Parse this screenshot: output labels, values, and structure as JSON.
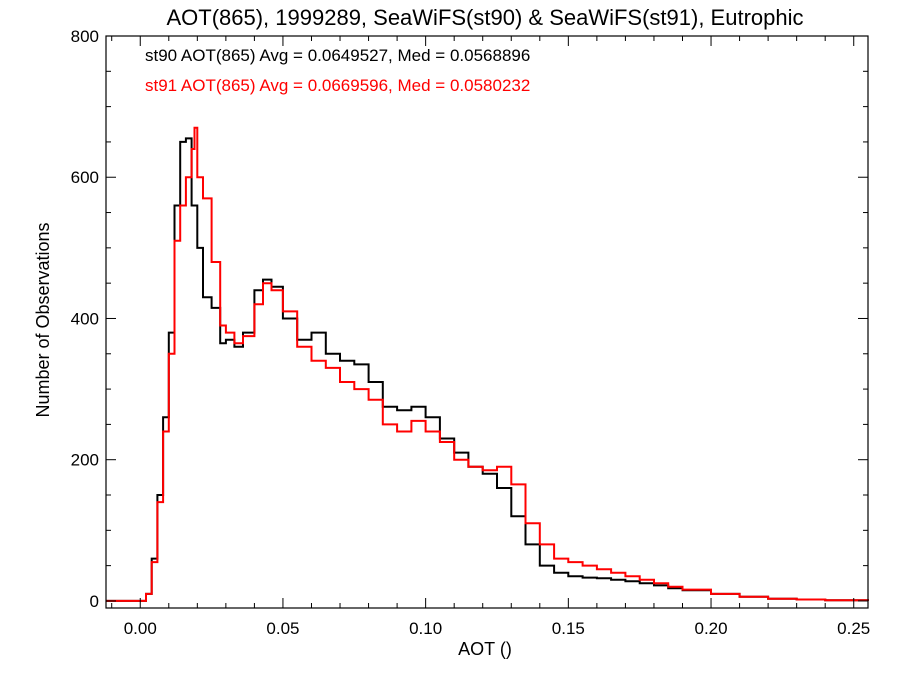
{
  "chart_data": {
    "type": "line",
    "title": "AOT(865), 1999289, SeaWiFS(st90) & SeaWiFS(st91), Eutrophic",
    "xlabel": "AOT ()",
    "ylabel": "Number of Observations",
    "xlim": [
      -0.012,
      0.255
    ],
    "ylim": [
      -10,
      800
    ],
    "xticks": [
      0.0,
      0.05,
      0.1,
      0.15,
      0.2,
      0.25
    ],
    "xtick_labels": [
      "0.00",
      "0.05",
      "0.10",
      "0.15",
      "0.20",
      "0.25"
    ],
    "yticks": [
      0,
      200,
      400,
      600,
      800
    ],
    "ytick_labels": [
      "0",
      "200",
      "400",
      "600",
      "800"
    ],
    "grid": false,
    "legend": "top-left",
    "series": [
      {
        "name": "st90",
        "label": "st90 AOT(865) Avg = 0.0649527, Med = 0.0568896",
        "color": "#000000",
        "x": [
          -0.012,
          0.0,
          0.002,
          0.004,
          0.006,
          0.008,
          0.01,
          0.012,
          0.014,
          0.016,
          0.018,
          0.02,
          0.022,
          0.025,
          0.028,
          0.03,
          0.033,
          0.036,
          0.04,
          0.043,
          0.046,
          0.05,
          0.055,
          0.06,
          0.065,
          0.07,
          0.075,
          0.08,
          0.085,
          0.09,
          0.095,
          0.1,
          0.105,
          0.11,
          0.115,
          0.12,
          0.125,
          0.13,
          0.135,
          0.14,
          0.145,
          0.15,
          0.155,
          0.16,
          0.165,
          0.17,
          0.175,
          0.18,
          0.185,
          0.19,
          0.2,
          0.21,
          0.22,
          0.23,
          0.24,
          0.255
        ],
        "y": [
          0,
          0,
          10,
          60,
          150,
          260,
          380,
          560,
          650,
          655,
          560,
          500,
          430,
          415,
          365,
          370,
          360,
          380,
          440,
          455,
          445,
          400,
          370,
          380,
          350,
          340,
          335,
          310,
          275,
          270,
          275,
          260,
          230,
          210,
          190,
          180,
          160,
          120,
          80,
          50,
          40,
          35,
          33,
          32,
          30,
          28,
          25,
          22,
          18,
          15,
          10,
          6,
          3,
          2,
          1,
          0
        ]
      },
      {
        "name": "st91",
        "label": "st91 AOT(865) Avg = 0.0669596, Med = 0.0580232",
        "color": "#ff0000",
        "x": [
          -0.012,
          0.0,
          0.002,
          0.004,
          0.006,
          0.008,
          0.01,
          0.012,
          0.014,
          0.016,
          0.018,
          0.019,
          0.02,
          0.022,
          0.025,
          0.028,
          0.03,
          0.033,
          0.036,
          0.04,
          0.043,
          0.046,
          0.05,
          0.055,
          0.06,
          0.065,
          0.07,
          0.075,
          0.08,
          0.085,
          0.09,
          0.095,
          0.1,
          0.105,
          0.11,
          0.115,
          0.12,
          0.125,
          0.13,
          0.135,
          0.14,
          0.145,
          0.15,
          0.155,
          0.16,
          0.165,
          0.17,
          0.175,
          0.18,
          0.185,
          0.19,
          0.2,
          0.21,
          0.22,
          0.23,
          0.24,
          0.255
        ],
        "y": [
          0,
          0,
          10,
          55,
          140,
          240,
          350,
          510,
          560,
          600,
          640,
          670,
          600,
          570,
          480,
          390,
          380,
          365,
          375,
          420,
          450,
          440,
          410,
          360,
          340,
          330,
          310,
          300,
          285,
          250,
          240,
          255,
          240,
          225,
          200,
          190,
          185,
          190,
          165,
          110,
          80,
          60,
          55,
          50,
          45,
          40,
          35,
          30,
          25,
          20,
          16,
          10,
          6,
          3,
          2,
          1,
          0
        ]
      }
    ]
  }
}
